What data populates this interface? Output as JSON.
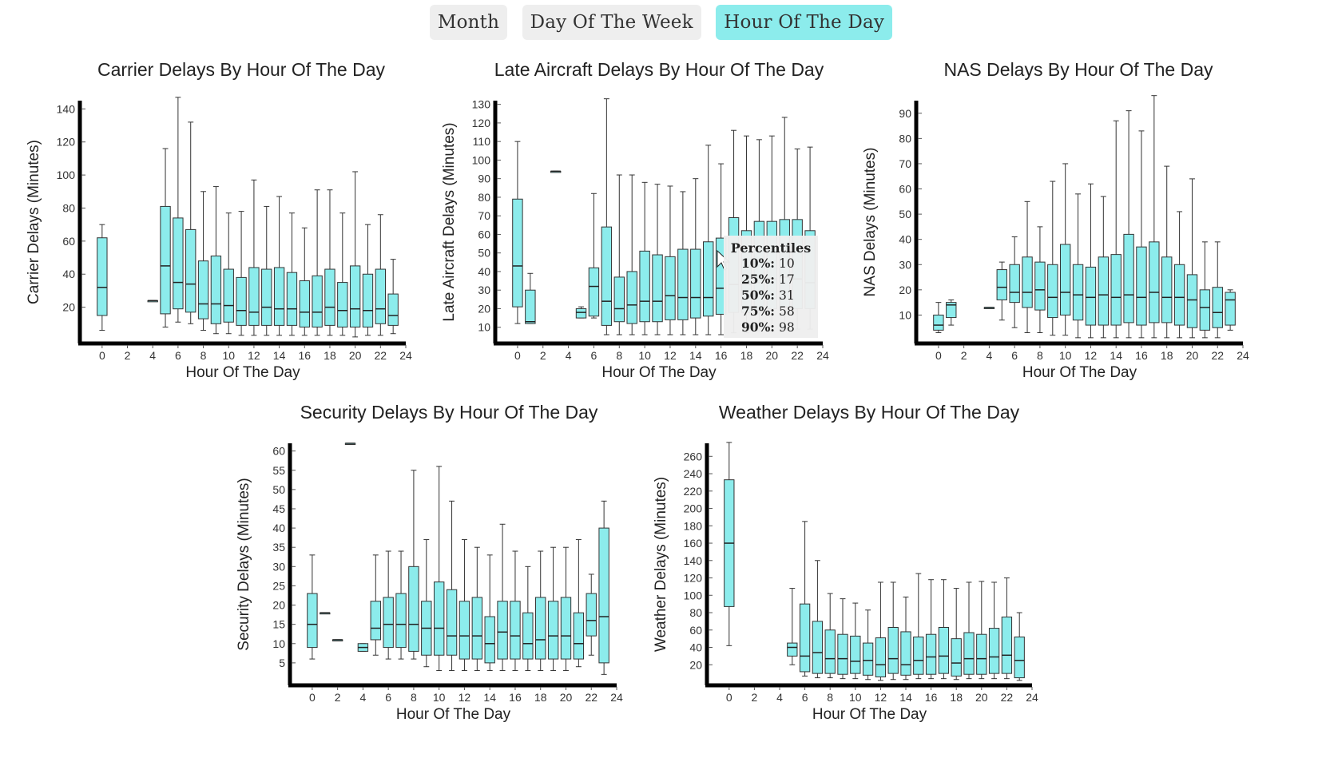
{
  "tabs": [
    {
      "label": "Month",
      "active": false
    },
    {
      "label": "Day Of The Week",
      "active": false
    },
    {
      "label": "Hour Of The Day",
      "active": true
    }
  ],
  "colors": {
    "box_fill": "#8cecec",
    "box_stroke": "#333333",
    "axis": "#000000",
    "tab_active": "#8cecec",
    "tab_inactive": "#eeeeee",
    "tooltip_bg": "#eeeeee"
  },
  "tooltip": {
    "header": "Percentiles",
    "rows": [
      {
        "label": "10%:",
        "value": "10"
      },
      {
        "label": "25%:",
        "value": "17"
      },
      {
        "label": "50%:",
        "value": "31"
      },
      {
        "label": "75%:",
        "value": "58"
      },
      {
        "label": "90%:",
        "value": "98"
      }
    ]
  },
  "chart_data": [
    {
      "id": "carrier",
      "type": "box",
      "title": "Carrier Delays By Hour Of The Day",
      "xlabel": "Hour Of The Day",
      "ylabel": "Carrier Delays (Minutes)",
      "xlim": [
        -1,
        24
      ],
      "ylim": [
        0,
        145
      ],
      "xticks": [
        0,
        2,
        4,
        6,
        8,
        10,
        12,
        14,
        16,
        18,
        20,
        22,
        24
      ],
      "yticks": [
        20,
        40,
        60,
        80,
        100,
        120,
        140
      ],
      "boxes": [
        {
          "x": 0,
          "wlo": 6,
          "q1": 15,
          "med": 32,
          "q3": 62,
          "whi": 70
        },
        {
          "x": 4,
          "wlo": 24,
          "q1": 24,
          "med": 24,
          "q3": 24,
          "whi": 24
        },
        {
          "x": 5,
          "wlo": 8,
          "q1": 16,
          "med": 45,
          "q3": 81,
          "whi": 116
        },
        {
          "x": 6,
          "wlo": 11,
          "q1": 19,
          "med": 35,
          "q3": 74,
          "whi": 147
        },
        {
          "x": 7,
          "wlo": 10,
          "q1": 17,
          "med": 34,
          "q3": 67,
          "whi": 132
        },
        {
          "x": 8,
          "wlo": 6,
          "q1": 13,
          "med": 22,
          "q3": 48,
          "whi": 90
        },
        {
          "x": 9,
          "wlo": 4,
          "q1": 10,
          "med": 22,
          "q3": 51,
          "whi": 93
        },
        {
          "x": 10,
          "wlo": 4,
          "q1": 11,
          "med": 21,
          "q3": 43,
          "whi": 77
        },
        {
          "x": 11,
          "wlo": 3,
          "q1": 9,
          "med": 18,
          "q3": 38,
          "whi": 78
        },
        {
          "x": 12,
          "wlo": 3,
          "q1": 9,
          "med": 17,
          "q3": 44,
          "whi": 97
        },
        {
          "x": 13,
          "wlo": 3,
          "q1": 9,
          "med": 20,
          "q3": 43,
          "whi": 81
        },
        {
          "x": 14,
          "wlo": 3,
          "q1": 9,
          "med": 19,
          "q3": 44,
          "whi": 87
        },
        {
          "x": 15,
          "wlo": 3,
          "q1": 9,
          "med": 19,
          "q3": 41,
          "whi": 77
        },
        {
          "x": 16,
          "wlo": 3,
          "q1": 8,
          "med": 17,
          "q3": 36,
          "whi": 68
        },
        {
          "x": 17,
          "wlo": 3,
          "q1": 8,
          "med": 17,
          "q3": 39,
          "whi": 91
        },
        {
          "x": 18,
          "wlo": 3,
          "q1": 9,
          "med": 20,
          "q3": 43,
          "whi": 91
        },
        {
          "x": 19,
          "wlo": 3,
          "q1": 8,
          "med": 18,
          "q3": 35,
          "whi": 77
        },
        {
          "x": 20,
          "wlo": 2,
          "q1": 8,
          "med": 19,
          "q3": 45,
          "whi": 102
        },
        {
          "x": 21,
          "wlo": 3,
          "q1": 8,
          "med": 18,
          "q3": 40,
          "whi": 70
        },
        {
          "x": 22,
          "wlo": 3,
          "q1": 10,
          "med": 19,
          "q3": 43,
          "whi": 76
        },
        {
          "x": 23,
          "wlo": 4,
          "q1": 9,
          "med": 15,
          "q3": 28,
          "whi": 49
        }
      ]
    },
    {
      "id": "late",
      "type": "box",
      "title": "Late Aircraft Delays By Hour Of The Day",
      "xlabel": "Hour Of The Day",
      "ylabel": "Late Aircraft Delays (Minutes)",
      "xlim": [
        -1,
        24
      ],
      "ylim": [
        3,
        132
      ],
      "xticks": [
        0,
        2,
        4,
        6,
        8,
        10,
        12,
        14,
        16,
        18,
        20,
        22,
        24
      ],
      "yticks": [
        10,
        20,
        30,
        40,
        50,
        60,
        70,
        80,
        90,
        100,
        110,
        120,
        130
      ],
      "boxes": [
        {
          "x": 0,
          "wlo": 12,
          "q1": 21,
          "med": 43,
          "q3": 79,
          "whi": 110
        },
        {
          "x": 1,
          "wlo": 12,
          "q1": 12,
          "med": 13,
          "q3": 30,
          "whi": 39
        },
        {
          "x": 3,
          "wlo": 94,
          "q1": 94,
          "med": 94,
          "q3": 94,
          "whi": 94
        },
        {
          "x": 5,
          "wlo": 15,
          "q1": 15,
          "med": 18,
          "q3": 20,
          "whi": 21
        },
        {
          "x": 6,
          "wlo": 15,
          "q1": 16,
          "med": 32,
          "q3": 42,
          "whi": 82
        },
        {
          "x": 7,
          "wlo": 6,
          "q1": 11,
          "med": 24,
          "q3": 64,
          "whi": 133
        },
        {
          "x": 8,
          "wlo": 6,
          "q1": 13,
          "med": 20,
          "q3": 37,
          "whi": 92
        },
        {
          "x": 9,
          "wlo": 6,
          "q1": 12,
          "med": 22,
          "q3": 40,
          "whi": 92
        },
        {
          "x": 10,
          "wlo": 6,
          "q1": 13,
          "med": 24,
          "q3": 51,
          "whi": 88
        },
        {
          "x": 11,
          "wlo": 6,
          "q1": 13,
          "med": 24,
          "q3": 49,
          "whi": 87
        },
        {
          "x": 12,
          "wlo": 6,
          "q1": 14,
          "med": 27,
          "q3": 48,
          "whi": 86
        },
        {
          "x": 13,
          "wlo": 6,
          "q1": 14,
          "med": 26,
          "q3": 52,
          "whi": 83
        },
        {
          "x": 14,
          "wlo": 6,
          "q1": 15,
          "med": 26,
          "q3": 52,
          "whi": 90
        },
        {
          "x": 15,
          "wlo": 6,
          "q1": 16,
          "med": 26,
          "q3": 56,
          "whi": 108
        },
        {
          "x": 16,
          "wlo": 6,
          "q1": 17,
          "med": 31,
          "q3": 58,
          "whi": 98
        },
        {
          "x": 17,
          "wlo": 7,
          "q1": 18,
          "med": 33,
          "q3": 69,
          "whi": 116
        },
        {
          "x": 18,
          "wlo": 7,
          "q1": 18,
          "med": 33,
          "q3": 62,
          "whi": 113
        },
        {
          "x": 19,
          "wlo": 8,
          "q1": 19,
          "med": 34,
          "q3": 67,
          "whi": 111
        },
        {
          "x": 20,
          "wlo": 8,
          "q1": 20,
          "med": 36,
          "q3": 67,
          "whi": 113
        },
        {
          "x": 21,
          "wlo": 9,
          "q1": 21,
          "med": 37,
          "q3": 68,
          "whi": 123
        },
        {
          "x": 22,
          "wlo": 9,
          "q1": 20,
          "med": 36,
          "q3": 68,
          "whi": 106
        },
        {
          "x": 23,
          "wlo": 9,
          "q1": 20,
          "med": 34,
          "q3": 62,
          "whi": 107
        }
      ]
    },
    {
      "id": "nas",
      "type": "box",
      "title": "NAS Delays By Hour Of The Day",
      "xlabel": "Hour Of The Day",
      "ylabel": "NAS Delays (Minutes)",
      "xlim": [
        -1,
        24
      ],
      "ylim": [
        0,
        95
      ],
      "xticks": [
        0,
        2,
        4,
        6,
        8,
        10,
        12,
        14,
        16,
        18,
        20,
        22,
        24
      ],
      "yticks": [
        10,
        20,
        30,
        40,
        50,
        60,
        70,
        80,
        90
      ],
      "boxes": [
        {
          "x": 0,
          "wlo": 3,
          "q1": 4,
          "med": 6,
          "q3": 10,
          "whi": 15
        },
        {
          "x": 1,
          "wlo": 6,
          "q1": 9,
          "med": 14,
          "q3": 15,
          "whi": 16
        },
        {
          "x": 4,
          "wlo": 13,
          "q1": 13,
          "med": 13,
          "q3": 13,
          "whi": 13
        },
        {
          "x": 5,
          "wlo": 8,
          "q1": 16,
          "med": 21,
          "q3": 28,
          "whi": 31
        },
        {
          "x": 6,
          "wlo": 5,
          "q1": 15,
          "med": 19,
          "q3": 30,
          "whi": 41
        },
        {
          "x": 7,
          "wlo": 3,
          "q1": 13,
          "med": 19,
          "q3": 33,
          "whi": 55
        },
        {
          "x": 8,
          "wlo": 3,
          "q1": 12,
          "med": 20,
          "q3": 31,
          "whi": 45
        },
        {
          "x": 9,
          "wlo": 2,
          "q1": 9,
          "med": 17,
          "q3": 30,
          "whi": 63
        },
        {
          "x": 10,
          "wlo": 2,
          "q1": 10,
          "med": 19,
          "q3": 38,
          "whi": 70
        },
        {
          "x": 11,
          "wlo": 1,
          "q1": 8,
          "med": 18,
          "q3": 30,
          "whi": 58
        },
        {
          "x": 12,
          "wlo": 1,
          "q1": 6,
          "med": 17,
          "q3": 29,
          "whi": 62
        },
        {
          "x": 13,
          "wlo": 1,
          "q1": 6,
          "med": 18,
          "q3": 33,
          "whi": 57
        },
        {
          "x": 14,
          "wlo": 1,
          "q1": 6,
          "med": 17,
          "q3": 34,
          "whi": 87
        },
        {
          "x": 15,
          "wlo": 1,
          "q1": 7,
          "med": 18,
          "q3": 42,
          "whi": 91
        },
        {
          "x": 16,
          "wlo": 1,
          "q1": 6,
          "med": 17,
          "q3": 37,
          "whi": 83
        },
        {
          "x": 17,
          "wlo": 1,
          "q1": 7,
          "med": 19,
          "q3": 39,
          "whi": 97
        },
        {
          "x": 18,
          "wlo": 1,
          "q1": 7,
          "med": 17,
          "q3": 33,
          "whi": 69
        },
        {
          "x": 19,
          "wlo": 1,
          "q1": 6,
          "med": 17,
          "q3": 30,
          "whi": 51
        },
        {
          "x": 20,
          "wlo": 1,
          "q1": 5,
          "med": 16,
          "q3": 26,
          "whi": 64
        },
        {
          "x": 21,
          "wlo": 1,
          "q1": 4,
          "med": 13,
          "q3": 20,
          "whi": 39
        },
        {
          "x": 22,
          "wlo": 1,
          "q1": 5,
          "med": 11,
          "q3": 21,
          "whi": 39
        },
        {
          "x": 23,
          "wlo": 4,
          "q1": 6,
          "med": 16,
          "q3": 19,
          "whi": 20
        }
      ]
    },
    {
      "id": "security",
      "type": "box",
      "title": "Security Delays By Hour Of The Day",
      "xlabel": "Hour Of The Day",
      "ylabel": "Security Delays (Minutes)",
      "xlim": [
        -1,
        24
      ],
      "ylim": [
        0,
        62
      ],
      "xticks": [
        0,
        2,
        4,
        6,
        8,
        10,
        12,
        14,
        16,
        18,
        20,
        22,
        24
      ],
      "yticks": [
        5,
        10,
        15,
        20,
        25,
        30,
        35,
        40,
        45,
        50,
        55,
        60
      ],
      "boxes": [
        {
          "x": 0,
          "wlo": 6,
          "q1": 9,
          "med": 15,
          "q3": 23,
          "whi": 33
        },
        {
          "x": 1,
          "wlo": 18,
          "q1": 18,
          "med": 18,
          "q3": 18,
          "whi": 18
        },
        {
          "x": 2,
          "wlo": 11,
          "q1": 11,
          "med": 11,
          "q3": 11,
          "whi": 11
        },
        {
          "x": 3,
          "wlo": 62,
          "q1": 62,
          "med": 62,
          "q3": 62,
          "whi": 62
        },
        {
          "x": 4,
          "wlo": 8,
          "q1": 8,
          "med": 9,
          "q3": 10,
          "whi": 10
        },
        {
          "x": 5,
          "wlo": 7,
          "q1": 11,
          "med": 14,
          "q3": 21,
          "whi": 33
        },
        {
          "x": 6,
          "wlo": 6,
          "q1": 9,
          "med": 15,
          "q3": 22,
          "whi": 34
        },
        {
          "x": 7,
          "wlo": 6,
          "q1": 9,
          "med": 15,
          "q3": 23,
          "whi": 34
        },
        {
          "x": 8,
          "wlo": 6,
          "q1": 8,
          "med": 15,
          "q3": 30,
          "whi": 55
        },
        {
          "x": 9,
          "wlo": 4,
          "q1": 7,
          "med": 14,
          "q3": 21,
          "whi": 37
        },
        {
          "x": 10,
          "wlo": 3,
          "q1": 7,
          "med": 14,
          "q3": 26,
          "whi": 56
        },
        {
          "x": 11,
          "wlo": 3,
          "q1": 7,
          "med": 12,
          "q3": 24,
          "whi": 47
        },
        {
          "x": 12,
          "wlo": 3,
          "q1": 6,
          "med": 12,
          "q3": 21,
          "whi": 37
        },
        {
          "x": 13,
          "wlo": 3,
          "q1": 6,
          "med": 12,
          "q3": 22,
          "whi": 35
        },
        {
          "x": 14,
          "wlo": 3,
          "q1": 5,
          "med": 10,
          "q3": 17,
          "whi": 33
        },
        {
          "x": 15,
          "wlo": 3,
          "q1": 6,
          "med": 13,
          "q3": 21,
          "whi": 41
        },
        {
          "x": 16,
          "wlo": 3,
          "q1": 6,
          "med": 12,
          "q3": 21,
          "whi": 34
        },
        {
          "x": 17,
          "wlo": 3,
          "q1": 6,
          "med": 10,
          "q3": 18,
          "whi": 30
        },
        {
          "x": 18,
          "wlo": 3,
          "q1": 6,
          "med": 11,
          "q3": 22,
          "whi": 34
        },
        {
          "x": 19,
          "wlo": 3,
          "q1": 6,
          "med": 12,
          "q3": 21,
          "whi": 35
        },
        {
          "x": 20,
          "wlo": 3,
          "q1": 6,
          "med": 12,
          "q3": 22,
          "whi": 35
        },
        {
          "x": 21,
          "wlo": 4,
          "q1": 6,
          "med": 10,
          "q3": 18,
          "whi": 37
        },
        {
          "x": 22,
          "wlo": 7,
          "q1": 12,
          "med": 16,
          "q3": 23,
          "whi": 28
        },
        {
          "x": 23,
          "wlo": 2,
          "q1": 5,
          "med": 17,
          "q3": 40,
          "whi": 47
        }
      ]
    },
    {
      "id": "weather",
      "type": "box",
      "title": "Weather Delays By Hour Of The Day",
      "xlabel": "Hour Of The Day",
      "ylabel": "Weather Delays (Minutes)",
      "xlim": [
        -1,
        24
      ],
      "ylim": [
        0,
        275
      ],
      "xticks": [
        0,
        2,
        4,
        6,
        8,
        10,
        12,
        14,
        16,
        18,
        20,
        22,
        24
      ],
      "yticks": [
        20,
        40,
        60,
        80,
        100,
        120,
        140,
        160,
        180,
        200,
        220,
        240,
        260
      ],
      "boxes": [
        {
          "x": 0,
          "wlo": 42,
          "q1": 87,
          "med": 160,
          "q3": 233,
          "whi": 276
        },
        {
          "x": 5,
          "wlo": 20,
          "q1": 30,
          "med": 40,
          "q3": 45,
          "whi": 108
        },
        {
          "x": 6,
          "wlo": 7,
          "q1": 12,
          "med": 30,
          "q3": 90,
          "whi": 185
        },
        {
          "x": 7,
          "wlo": 5,
          "q1": 10,
          "med": 34,
          "q3": 70,
          "whi": 140
        },
        {
          "x": 8,
          "wlo": 5,
          "q1": 10,
          "med": 27,
          "q3": 60,
          "whi": 102
        },
        {
          "x": 9,
          "wlo": 4,
          "q1": 9,
          "med": 27,
          "q3": 55,
          "whi": 96
        },
        {
          "x": 10,
          "wlo": 4,
          "q1": 10,
          "med": 24,
          "q3": 53,
          "whi": 91
        },
        {
          "x": 11,
          "wlo": 3,
          "q1": 8,
          "med": 25,
          "q3": 45,
          "whi": 83
        },
        {
          "x": 12,
          "wlo": 2,
          "q1": 6,
          "med": 20,
          "q3": 51,
          "whi": 115
        },
        {
          "x": 13,
          "wlo": 3,
          "q1": 10,
          "med": 27,
          "q3": 63,
          "whi": 115
        },
        {
          "x": 14,
          "wlo": 3,
          "q1": 8,
          "med": 20,
          "q3": 58,
          "whi": 98
        },
        {
          "x": 15,
          "wlo": 4,
          "q1": 9,
          "med": 25,
          "q3": 52,
          "whi": 125
        },
        {
          "x": 16,
          "wlo": 4,
          "q1": 9,
          "med": 29,
          "q3": 55,
          "whi": 118
        },
        {
          "x": 17,
          "wlo": 4,
          "q1": 10,
          "med": 30,
          "q3": 63,
          "whi": 118
        },
        {
          "x": 18,
          "wlo": 3,
          "q1": 7,
          "med": 22,
          "q3": 50,
          "whi": 108
        },
        {
          "x": 19,
          "wlo": 4,
          "q1": 9,
          "med": 27,
          "q3": 57,
          "whi": 115
        },
        {
          "x": 20,
          "wlo": 4,
          "q1": 9,
          "med": 27,
          "q3": 55,
          "whi": 116
        },
        {
          "x": 21,
          "wlo": 4,
          "q1": 10,
          "med": 29,
          "q3": 62,
          "whi": 115
        },
        {
          "x": 22,
          "wlo": 4,
          "q1": 10,
          "med": 31,
          "q3": 75,
          "whi": 120
        },
        {
          "x": 23,
          "wlo": 2,
          "q1": 5,
          "med": 25,
          "q3": 52,
          "whi": 80
        }
      ]
    }
  ]
}
